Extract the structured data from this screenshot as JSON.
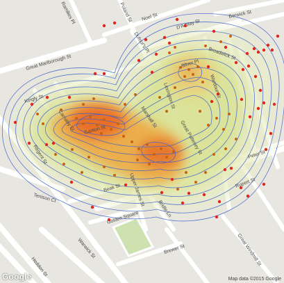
{
  "map": {
    "streets": [
      {
        "id": "ramilies",
        "name": "Ramilies Pl"
      },
      {
        "id": "poland",
        "name": "Poland St"
      },
      {
        "id": "noel",
        "name": "Noel St"
      },
      {
        "id": "dufours",
        "name": "Dufour's Pl"
      },
      {
        "id": "d_arblay",
        "name": "D'Arblay St"
      },
      {
        "id": "berwick_n",
        "name": "Berwick St"
      },
      {
        "id": "great_marlborough",
        "name": "Great Marlborough St"
      },
      {
        "id": "kingly",
        "name": "Kingly St"
      },
      {
        "id": "carnaby",
        "name": "Carnaby St"
      },
      {
        "id": "broadwick",
        "name": "Broadwick St"
      },
      {
        "id": "tenison",
        "name": "Tenison Ct"
      },
      {
        "id": "regent",
        "name": "Regent St"
      },
      {
        "id": "beak",
        "name": "Beak St"
      },
      {
        "id": "golden_sq",
        "name": "Golden Square"
      },
      {
        "id": "brewer",
        "name": "Brewer St"
      },
      {
        "id": "warwick",
        "name": "Warwick St"
      },
      {
        "id": "heddon",
        "name": "Heddon St"
      },
      {
        "id": "great_windmill",
        "name": "Great Windmill St"
      },
      {
        "id": "rupert",
        "name": "Rupert St"
      },
      {
        "id": "peter",
        "name": "Peter St"
      },
      {
        "id": "wardour",
        "name": "Wardour St"
      },
      {
        "id": "lexington",
        "name": "Lexington St"
      },
      {
        "id": "bridle",
        "name": "Bridle Ln"
      },
      {
        "id": "silver",
        "name": "Silver Pl"
      },
      {
        "id": "ganton",
        "name": "Ganton St"
      },
      {
        "id": "marshall",
        "name": "Marshall St"
      },
      {
        "id": "upper_james",
        "name": "Upper James St"
      },
      {
        "id": "great_pulteney",
        "name": "Great Pulteney St"
      }
    ],
    "attribution": "Map data ©2015 Google",
    "logo_text": "Google",
    "colors": {
      "land": "#e8e6e0",
      "road": "#ffffff",
      "park": "#cde2b0",
      "heat_low": "#e9eec5",
      "heat_high": "#e8611e",
      "contour": "#3b5fd0",
      "marker": "#e02620",
      "marker_dark": "#c76412"
    }
  }
}
